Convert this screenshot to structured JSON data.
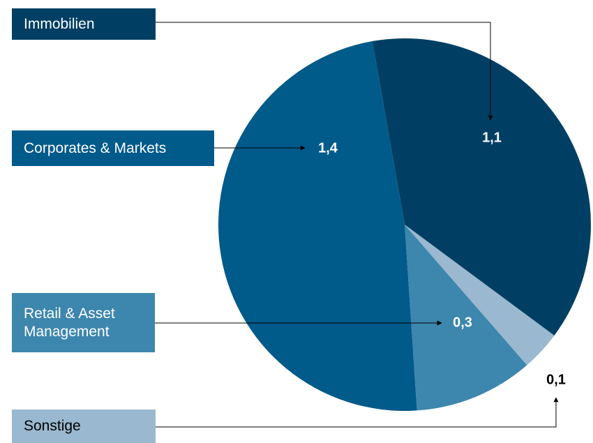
{
  "chart_data": {
    "type": "pie",
    "categories": [
      "Immobilien",
      "Sonstige",
      "Retail & Asset Management",
      "Corporates & Markets"
    ],
    "values": [
      1.1,
      0.1,
      0.3,
      1.4
    ],
    "value_labels": [
      "1,1",
      "0,1",
      "0,3",
      "1,4"
    ],
    "colors": [
      "#003f63",
      "#9ab8cf",
      "#3d86ad",
      "#005a8a"
    ]
  }
}
